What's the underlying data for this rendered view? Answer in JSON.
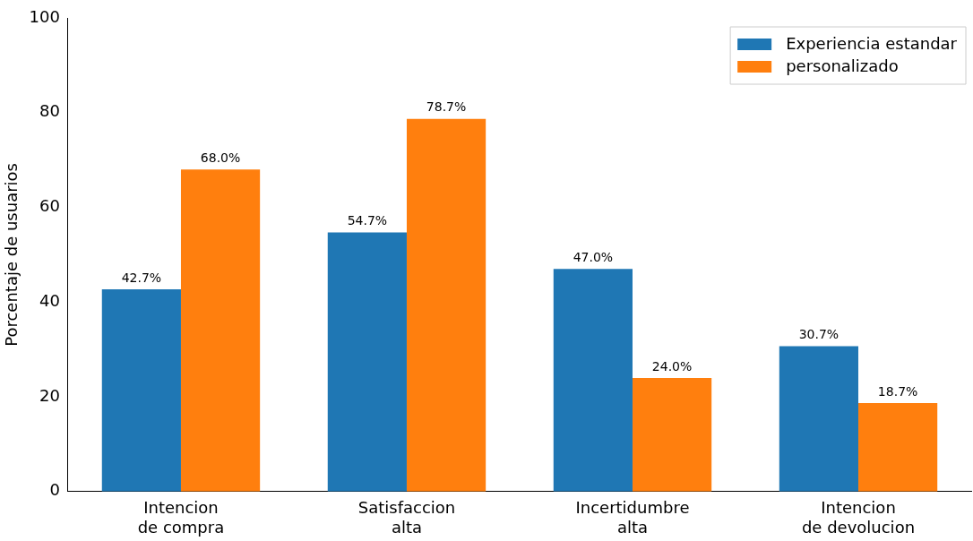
{
  "chart_data": {
    "type": "bar",
    "ylabel": "Porcentaje de usuarios",
    "categories": [
      "Intencion\nde compra",
      "Satisfaccion\nalta",
      "Incertidumbre\nalta",
      "Intencion\nde devolucion"
    ],
    "series": [
      {
        "name": "Experiencia estandar",
        "color": "#1f77b4",
        "values": [
          42.7,
          54.7,
          47.0,
          30.7
        ],
        "value_labels": [
          "42.7%",
          "54.7%",
          "47.0%",
          "30.7%"
        ]
      },
      {
        "name": "personalizado",
        "color": "#ff7f0e",
        "values": [
          68.0,
          78.7,
          24.0,
          18.7
        ],
        "value_labels": [
          "68.0%",
          "78.7%",
          "24.0%",
          "18.7%"
        ]
      }
    ],
    "ylim": [
      0,
      100
    ],
    "yticks": [
      0,
      20,
      40,
      60,
      80,
      100
    ],
    "grid": false,
    "legend": "top right"
  }
}
